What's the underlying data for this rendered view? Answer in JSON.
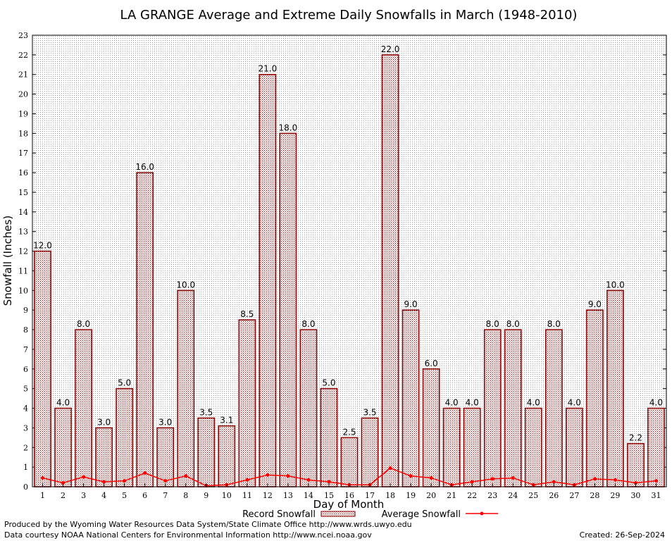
{
  "chart_data": {
    "type": "bar",
    "title": "LA GRANGE Average and Extreme Daily Snowfalls in March (1948-2010)",
    "xlabel": "Day of Month",
    "ylabel": "Snowfall (Inches)",
    "ylim": [
      0,
      23
    ],
    "yticks": [
      0,
      1,
      2,
      3,
      4,
      5,
      6,
      7,
      8,
      9,
      10,
      11,
      12,
      13,
      14,
      15,
      16,
      17,
      18,
      19,
      20,
      21,
      22,
      23
    ],
    "categories": [
      "1",
      "2",
      "3",
      "4",
      "5",
      "6",
      "7",
      "8",
      "9",
      "10",
      "11",
      "12",
      "13",
      "14",
      "15",
      "16",
      "17",
      "18",
      "19",
      "20",
      "21",
      "22",
      "23",
      "24",
      "25",
      "26",
      "27",
      "28",
      "29",
      "30",
      "31"
    ],
    "series": [
      {
        "name": "Record Snowfall",
        "type": "bar",
        "color": "#8b0000",
        "values": [
          12.0,
          4.0,
          8.0,
          3.0,
          5.0,
          16.0,
          3.0,
          10.0,
          3.5,
          3.1,
          8.5,
          21.0,
          18.0,
          8.0,
          5.0,
          2.5,
          3.5,
          22.0,
          9.0,
          6.0,
          4.0,
          4.0,
          8.0,
          8.0,
          4.0,
          8.0,
          4.0,
          9.0,
          10.0,
          2.2,
          4.0
        ],
        "labels": [
          "12.0",
          "4.0",
          "8.0",
          "3.0",
          "5.0",
          "16.0",
          "3.0",
          "10.0",
          "3.5",
          "3.1",
          "8.5",
          "21.0",
          "18.0",
          "8.0",
          "5.0",
          "2.5",
          "3.5",
          "22.0",
          "9.0",
          "6.0",
          "4.0",
          "4.0",
          "8.0",
          "8.0",
          "4.0",
          "8.0",
          "4.0",
          "9.0",
          "10.0",
          "2.2",
          "4.0"
        ]
      },
      {
        "name": "Average Snowfall",
        "type": "line",
        "color": "#ff0000",
        "values": [
          0.45,
          0.2,
          0.5,
          0.25,
          0.3,
          0.7,
          0.3,
          0.55,
          0.05,
          0.1,
          0.35,
          0.6,
          0.55,
          0.35,
          0.25,
          0.1,
          0.1,
          0.95,
          0.55,
          0.45,
          0.1,
          0.25,
          0.4,
          0.45,
          0.1,
          0.25,
          0.1,
          0.4,
          0.35,
          0.2,
          0.3
        ]
      }
    ],
    "legend": [
      "Record Snowfall",
      "Average Snowfall"
    ],
    "legend_position": "bottom-center",
    "grid": true
  },
  "footer": {
    "produced_by": "Produced by the Wyoming Water Resources Data System/State Climate Office http://www.wrds.uwyo.edu",
    "courtesy": "Data courtesy NOAA National Centers for Environmental Information http://www.ncei.noaa.gov",
    "created": "Created:  26-Sep-2024"
  }
}
